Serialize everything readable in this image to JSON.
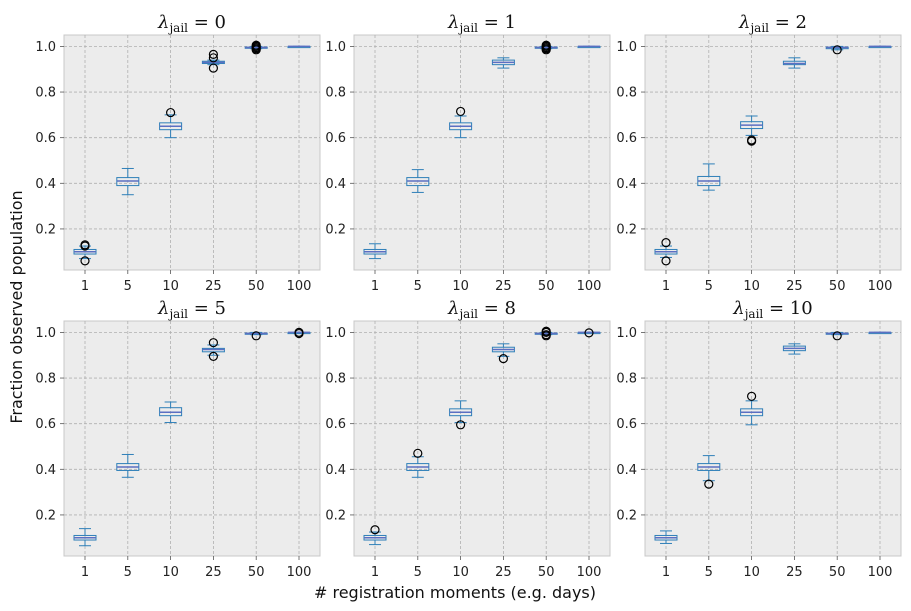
{
  "figure": {
    "xlabel": "# registration moments (e.g. days)",
    "ylabel": "Fraction observed population"
  },
  "colors": {
    "panel_bg": "#ececec",
    "grid": "#b0b0b0",
    "box": "#2e7fb8",
    "median": "#5b6fc2",
    "flier": "#000000",
    "spine": "#c8c8c8"
  },
  "chart_data": {
    "type": "box",
    "categories": [
      "1",
      "5",
      "10",
      "25",
      "50",
      "100"
    ],
    "ylim": [
      0.02,
      1.05
    ],
    "yticks": [
      0.2,
      0.4,
      0.6,
      0.8,
      1.0
    ],
    "ytick_labels": [
      "0.2",
      "0.4",
      "0.6",
      "0.8",
      "1.0"
    ],
    "grid": true,
    "panels": [
      {
        "title_base": "λ",
        "title_sub": "jail",
        "title_value": "0",
        "boxes": [
          {
            "whislo": 0.07,
            "q1": 0.09,
            "med": 0.1,
            "q3": 0.11,
            "whishi": 0.125,
            "fliers": [
              0.06,
              0.125,
              0.13
            ]
          },
          {
            "whislo": 0.35,
            "q1": 0.39,
            "med": 0.41,
            "q3": 0.425,
            "whishi": 0.465,
            "fliers": []
          },
          {
            "whislo": 0.6,
            "q1": 0.635,
            "med": 0.65,
            "q3": 0.665,
            "whishi": 0.7,
            "fliers": [
              0.71
            ]
          },
          {
            "whislo": 0.92,
            "q1": 0.925,
            "med": 0.93,
            "q3": 0.935,
            "whishi": 0.94,
            "fliers": [
              0.905,
              0.95,
              0.965
            ]
          },
          {
            "whislo": 0.99,
            "q1": 0.993,
            "med": 0.995,
            "q3": 0.997,
            "whishi": 1.0,
            "fliers": [
              0.985,
              0.99,
              0.995,
              1.0,
              1.005
            ]
          },
          {
            "whislo": 1.0,
            "q1": 1.0,
            "med": 1.0,
            "q3": 1.0,
            "whishi": 1.0,
            "fliers": []
          }
        ]
      },
      {
        "title_base": "λ",
        "title_sub": "jail",
        "title_value": "1",
        "boxes": [
          {
            "whislo": 0.07,
            "q1": 0.09,
            "med": 0.1,
            "q3": 0.11,
            "whishi": 0.135,
            "fliers": []
          },
          {
            "whislo": 0.36,
            "q1": 0.39,
            "med": 0.41,
            "q3": 0.425,
            "whishi": 0.46,
            "fliers": []
          },
          {
            "whislo": 0.6,
            "q1": 0.635,
            "med": 0.65,
            "q3": 0.665,
            "whishi": 0.695,
            "fliers": [
              0.715
            ]
          },
          {
            "whislo": 0.905,
            "q1": 0.92,
            "med": 0.93,
            "q3": 0.94,
            "whishi": 0.95,
            "fliers": []
          },
          {
            "whislo": 0.99,
            "q1": 0.993,
            "med": 0.995,
            "q3": 0.997,
            "whishi": 1.0,
            "fliers": [
              0.985,
              0.99,
              0.995,
              1.0,
              1.005
            ]
          },
          {
            "whislo": 1.0,
            "q1": 1.0,
            "med": 1.0,
            "q3": 1.0,
            "whishi": 1.0,
            "fliers": []
          }
        ]
      },
      {
        "title_base": "λ",
        "title_sub": "jail",
        "title_value": "2",
        "boxes": [
          {
            "whislo": 0.075,
            "q1": 0.09,
            "med": 0.1,
            "q3": 0.11,
            "whishi": 0.125,
            "fliers": [
              0.06,
              0.14
            ]
          },
          {
            "whislo": 0.37,
            "q1": 0.39,
            "med": 0.41,
            "q3": 0.43,
            "whishi": 0.485,
            "fliers": []
          },
          {
            "whislo": 0.61,
            "q1": 0.64,
            "med": 0.655,
            "q3": 0.67,
            "whishi": 0.695,
            "fliers": [
              0.585,
              0.59
            ]
          },
          {
            "whislo": 0.905,
            "q1": 0.92,
            "med": 0.925,
            "q3": 0.935,
            "whishi": 0.95,
            "fliers": []
          },
          {
            "whislo": 0.985,
            "q1": 0.99,
            "med": 0.995,
            "q3": 0.997,
            "whishi": 1.0,
            "fliers": [
              0.985
            ]
          },
          {
            "whislo": 1.0,
            "q1": 1.0,
            "med": 1.0,
            "q3": 1.0,
            "whishi": 1.0,
            "fliers": []
          }
        ]
      },
      {
        "title_base": "λ",
        "title_sub": "jail",
        "title_value": "5",
        "boxes": [
          {
            "whislo": 0.065,
            "q1": 0.09,
            "med": 0.1,
            "q3": 0.11,
            "whishi": 0.14,
            "fliers": []
          },
          {
            "whislo": 0.365,
            "q1": 0.395,
            "med": 0.41,
            "q3": 0.425,
            "whishi": 0.465,
            "fliers": []
          },
          {
            "whislo": 0.605,
            "q1": 0.635,
            "med": 0.65,
            "q3": 0.67,
            "whishi": 0.695,
            "fliers": []
          },
          {
            "whislo": 0.9,
            "q1": 0.915,
            "med": 0.925,
            "q3": 0.93,
            "whishi": 0.945,
            "fliers": [
              0.895,
              0.955
            ]
          },
          {
            "whislo": 0.99,
            "q1": 0.993,
            "med": 0.995,
            "q3": 0.997,
            "whishi": 1.0,
            "fliers": [
              0.985
            ]
          },
          {
            "whislo": 0.995,
            "q1": 1.0,
            "med": 1.0,
            "q3": 1.0,
            "whishi": 1.0,
            "fliers": [
              0.995,
              1.0
            ]
          }
        ]
      },
      {
        "title_base": "λ",
        "title_sub": "jail",
        "title_value": "8",
        "boxes": [
          {
            "whislo": 0.07,
            "q1": 0.09,
            "med": 0.1,
            "q3": 0.11,
            "whishi": 0.125,
            "fliers": [
              0.135
            ]
          },
          {
            "whislo": 0.365,
            "q1": 0.395,
            "med": 0.41,
            "q3": 0.425,
            "whishi": 0.455,
            "fliers": [
              0.47
            ]
          },
          {
            "whislo": 0.605,
            "q1": 0.635,
            "med": 0.65,
            "q3": 0.665,
            "whishi": 0.7,
            "fliers": [
              0.595
            ]
          },
          {
            "whislo": 0.895,
            "q1": 0.915,
            "med": 0.925,
            "q3": 0.935,
            "whishi": 0.95,
            "fliers": [
              0.885
            ]
          },
          {
            "whislo": 0.99,
            "q1": 0.993,
            "med": 0.995,
            "q3": 0.997,
            "whishi": 1.0,
            "fliers": [
              0.985,
              0.99,
              1.0,
              1.005
            ]
          },
          {
            "whislo": 1.0,
            "q1": 1.0,
            "med": 1.0,
            "q3": 1.0,
            "whishi": 1.0,
            "fliers": [
              0.998
            ]
          }
        ]
      },
      {
        "title_base": "λ",
        "title_sub": "jail",
        "title_value": "10",
        "boxes": [
          {
            "whislo": 0.075,
            "q1": 0.09,
            "med": 0.1,
            "q3": 0.11,
            "whishi": 0.13,
            "fliers": []
          },
          {
            "whislo": 0.35,
            "q1": 0.395,
            "med": 0.41,
            "q3": 0.425,
            "whishi": 0.46,
            "fliers": [
              0.335
            ]
          },
          {
            "whislo": 0.595,
            "q1": 0.635,
            "med": 0.65,
            "q3": 0.665,
            "whishi": 0.7,
            "fliers": [
              0.72
            ]
          },
          {
            "whislo": 0.905,
            "q1": 0.92,
            "med": 0.93,
            "q3": 0.94,
            "whishi": 0.95,
            "fliers": []
          },
          {
            "whislo": 0.99,
            "q1": 0.993,
            "med": 0.995,
            "q3": 0.997,
            "whishi": 1.0,
            "fliers": [
              0.985
            ]
          },
          {
            "whislo": 1.0,
            "q1": 1.0,
            "med": 1.0,
            "q3": 1.0,
            "whishi": 1.0,
            "fliers": []
          }
        ]
      }
    ]
  }
}
